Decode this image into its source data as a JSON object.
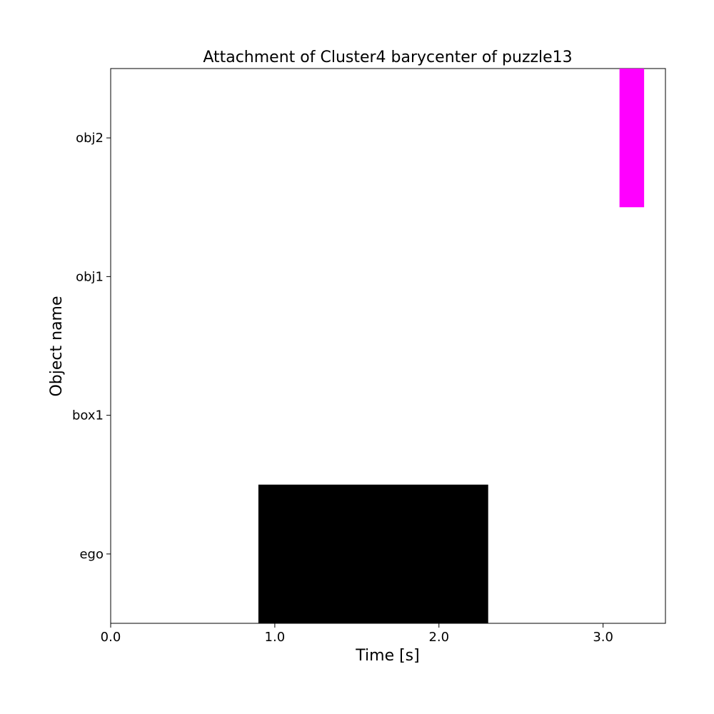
{
  "chart_data": {
    "type": "bar",
    "orientation": "horizontal-timeline",
    "title": "Attachment of Cluster4 barycenter of puzzle13",
    "xlabel": "Time [s]",
    "ylabel": "Object name",
    "xlim": [
      0.0,
      3.38
    ],
    "x_ticks": [
      "0.0",
      "1.0",
      "2.0",
      "3.0"
    ],
    "categories": [
      "ego",
      "box1",
      "obj1",
      "obj2"
    ],
    "bars": [
      {
        "category": "ego",
        "start": 0.9,
        "end": 2.3,
        "color": "#000000"
      },
      {
        "category": "obj2",
        "start": 3.1,
        "end": 3.25,
        "color": "#ff00ff"
      }
    ],
    "grid": false,
    "legend": "none"
  }
}
